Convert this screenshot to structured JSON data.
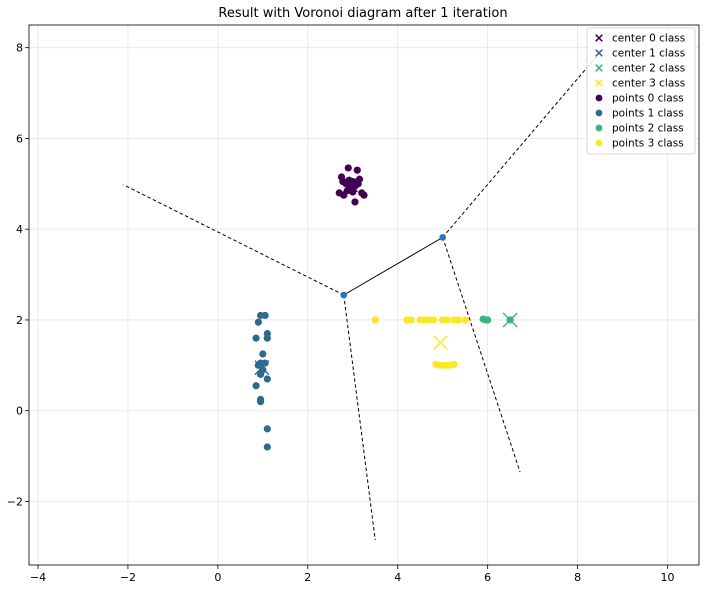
{
  "chart_data": {
    "type": "scatter",
    "title": "Result with Voronoi diagram after 1 iteration",
    "xlabel": "",
    "ylabel": "",
    "xlim": [
      -4.2,
      10.7
    ],
    "ylim": [
      -3.4,
      8.5
    ],
    "x_ticks": [
      -4,
      -2,
      0,
      2,
      4,
      6,
      8,
      10
    ],
    "y_ticks": [
      -2,
      0,
      2,
      4,
      6,
      8
    ],
    "grid": true,
    "legend_position": "top-right",
    "colors": {
      "class0": "#440154",
      "class1": "#31688e",
      "class2": "#35b779",
      "class3": "#fde725",
      "voronoi_vertex": "#1f77b4",
      "voronoi_edge": "#000000"
    },
    "legend": [
      {
        "label": "center 0 class",
        "marker": "x",
        "color": "#440154"
      },
      {
        "label": "center 1 class",
        "marker": "x",
        "color": "#31688e"
      },
      {
        "label": "center 2 class",
        "marker": "x",
        "color": "#35b779"
      },
      {
        "label": "center 3 class",
        "marker": "x",
        "color": "#fde725"
      },
      {
        "label": "points 0 class",
        "marker": "o",
        "color": "#440154"
      },
      {
        "label": "points 1 class",
        "marker": "o",
        "color": "#31688e"
      },
      {
        "label": "points 2 class",
        "marker": "o",
        "color": "#35b779"
      },
      {
        "label": "points 3 class",
        "marker": "o",
        "color": "#fde725"
      }
    ],
    "centers": [
      {
        "class": 0,
        "x": 2.95,
        "y": 4.98
      },
      {
        "class": 1,
        "x": 0.98,
        "y": 0.95
      },
      {
        "class": 2,
        "x": 6.5,
        "y": 2.0
      },
      {
        "class": 3,
        "x": 4.95,
        "y": 1.5
      }
    ],
    "series": [
      {
        "class": 0,
        "points": [
          [
            2.75,
            5.15
          ],
          [
            2.85,
            5.0
          ],
          [
            2.9,
            5.35
          ],
          [
            3.0,
            5.05
          ],
          [
            3.1,
            5.3
          ],
          [
            3.15,
            5.1
          ],
          [
            2.7,
            4.8
          ],
          [
            2.8,
            4.75
          ],
          [
            2.95,
            4.9
          ],
          [
            3.05,
            4.95
          ],
          [
            3.2,
            4.8
          ],
          [
            3.25,
            4.75
          ],
          [
            3.05,
            4.6
          ],
          [
            2.88,
            4.85
          ],
          [
            3.12,
            5.0
          ],
          [
            2.78,
            5.05
          ],
          [
            3.0,
            4.82
          ],
          [
            2.92,
            5.08
          ]
        ]
      },
      {
        "class": 1,
        "points": [
          [
            0.95,
            2.1
          ],
          [
            1.05,
            2.1
          ],
          [
            0.9,
            1.95
          ],
          [
            1.1,
            1.7
          ],
          [
            0.85,
            1.6
          ],
          [
            1.1,
            1.6
          ],
          [
            1.0,
            1.25
          ],
          [
            0.95,
            1.05
          ],
          [
            1.05,
            1.05
          ],
          [
            0.9,
            1.0
          ],
          [
            1.0,
            0.9
          ],
          [
            0.95,
            0.8
          ],
          [
            1.1,
            0.7
          ],
          [
            0.85,
            0.55
          ],
          [
            0.95,
            0.25
          ],
          [
            0.95,
            0.2
          ],
          [
            1.1,
            -0.4
          ],
          [
            1.1,
            -0.8
          ]
        ]
      },
      {
        "class": 2,
        "points": [
          [
            5.9,
            2.02
          ],
          [
            5.95,
            2.0
          ],
          [
            6.0,
            2.0
          ],
          [
            6.5,
            2.0
          ]
        ]
      },
      {
        "class": 3,
        "points": [
          [
            3.5,
            2.0
          ],
          [
            4.2,
            2.0
          ],
          [
            4.3,
            2.0
          ],
          [
            4.5,
            2.0
          ],
          [
            4.6,
            2.0
          ],
          [
            4.7,
            2.0
          ],
          [
            4.8,
            2.0
          ],
          [
            5.0,
            2.0
          ],
          [
            5.1,
            2.0
          ],
          [
            5.25,
            2.0
          ],
          [
            5.35,
            2.0
          ],
          [
            5.5,
            2.0
          ],
          [
            4.85,
            1.02
          ],
          [
            4.95,
            1.0
          ],
          [
            5.05,
            1.0
          ],
          [
            5.15,
            1.0
          ],
          [
            5.25,
            1.02
          ]
        ]
      }
    ],
    "voronoi": {
      "vertices": [
        [
          2.8,
          2.55
        ],
        [
          5.0,
          3.82
        ]
      ],
      "segments": [
        [
          [
            2.8,
            2.55
          ],
          [
            5.0,
            3.82
          ]
        ]
      ],
      "ridges_dashed": [
        [
          [
            2.8,
            2.55
          ],
          [
            -2.1,
            4.98
          ]
        ],
        [
          [
            2.8,
            2.55
          ],
          [
            3.5,
            -2.85
          ]
        ],
        [
          [
            5.0,
            3.82
          ],
          [
            6.72,
            -1.35
          ]
        ],
        [
          [
            5.0,
            3.82
          ],
          [
            8.5,
            7.9
          ]
        ]
      ]
    }
  }
}
